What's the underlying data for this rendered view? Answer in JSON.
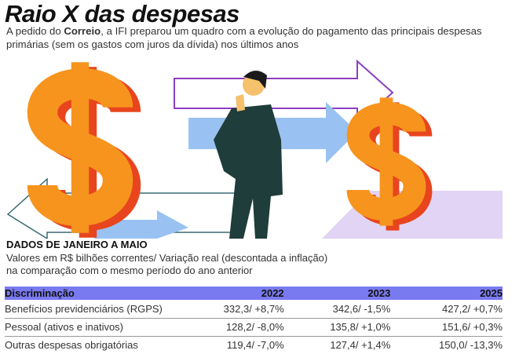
{
  "title": "Raio X das despesas",
  "subtitle": {
    "pre": "A pedido do ",
    "bold": "Correio",
    "post": ", a IFI preparou um quadro com a evolução do pagamento das principais despesas primárias (sem os gastos com juros da dívida) nos últimos anos"
  },
  "illustration": {
    "dollar_glyph": "$"
  },
  "section_label": "DADOS DE JANEIRO A MAIO",
  "note_line1": "Valores em R$ bilhões correntes/ Variação real (descontada a inflação)",
  "note_line2": "na comparação com o mesmo período do ano anterior",
  "table": {
    "headers": [
      "Discriminação",
      "2022",
      "2023",
      "2025"
    ],
    "rows": [
      [
        "Benefícios previdenciários (RGPS)",
        "332,3/ +8,7%",
        "342,6/ -1,5%",
        "427,2/ +0,7%"
      ],
      [
        "Pessoal (ativos e inativos)",
        "128,2/ -8,0%",
        "135,8/ +1,0%",
        "151,6/ +0,3%"
      ],
      [
        "Outras despesas obrigatórias",
        "119,4/ -7,0%",
        "127,4/ +1,4%",
        "150,0/ -13,3%"
      ]
    ]
  },
  "colors": {
    "header": "#7a7af0",
    "orange": "#f7941d",
    "red": "#e8451e",
    "blue_arrow": "#99c2f2",
    "purple": "#8c3fc0"
  }
}
